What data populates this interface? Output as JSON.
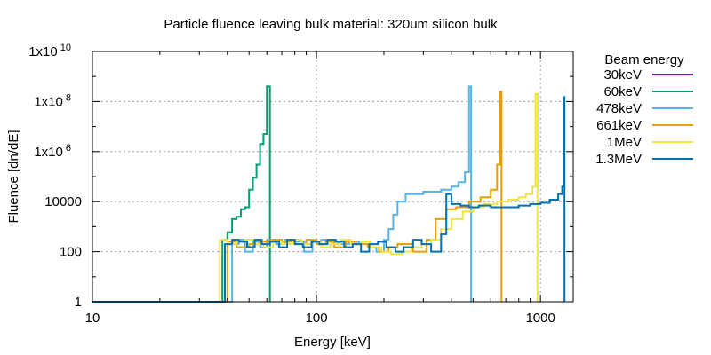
{
  "chart_data": {
    "type": "line",
    "title": "Particle fluence leaving bulk material: 320um silicon bulk",
    "xlabel": "Energy [keV]",
    "ylabel": "Fluence [dn/dE]",
    "xscale": "log",
    "yscale": "log",
    "xlim": [
      10,
      1400
    ],
    "ylim": [
      1,
      10000000000
    ],
    "x_ticks": [
      {
        "value": 10,
        "label": "10"
      },
      {
        "value": 100,
        "label": "100"
      },
      {
        "value": 1000,
        "label": "1000"
      }
    ],
    "y_ticks": [
      {
        "value": 1,
        "label": "1"
      },
      {
        "value": 100,
        "label": "100"
      },
      {
        "value": 10000,
        "label": "10000"
      },
      {
        "value": 1000000,
        "label": "1x10",
        "exp": "6"
      },
      {
        "value": 100000000,
        "label": "1x10",
        "exp": "8"
      },
      {
        "value": 10000000000,
        "label": "1x10",
        "exp": "10"
      }
    ],
    "grid": true,
    "legend": {
      "title": "Beam energy",
      "placement": "outside-right"
    },
    "series": [
      {
        "name": "30keV",
        "color": "#9400d3",
        "x": [],
        "y": []
      },
      {
        "name": "60keV",
        "color": "#009e73",
        "x": [
          10,
          35,
          38,
          40,
          42,
          44,
          46,
          48,
          50,
          52,
          54,
          56,
          58,
          60,
          62
        ],
        "y": [
          1,
          1,
          300,
          600,
          2000,
          2500,
          5000,
          6000,
          30000,
          90000,
          300000,
          2000000,
          5000000,
          400000000,
          1
        ]
      },
      {
        "name": "478keV",
        "color": "#56b4e9",
        "x": [
          10,
          40,
          42,
          45,
          48,
          52,
          56,
          60,
          66,
          72,
          80,
          88,
          96,
          105,
          115,
          125,
          140,
          155,
          170,
          185,
          200,
          210,
          220,
          230,
          250,
          270,
          300,
          330,
          360,
          400,
          430,
          460,
          480,
          490
        ],
        "y": [
          1,
          1,
          200,
          300,
          100,
          250,
          150,
          300,
          200,
          300,
          250,
          100,
          250,
          300,
          250,
          200,
          250,
          200,
          150,
          100,
          300,
          800,
          3000,
          10000,
          20000,
          20000,
          25000,
          25000,
          30000,
          40000,
          60000,
          150000,
          400000000,
          1
        ]
      },
      {
        "name": "661keV",
        "color": "#e69f00",
        "x": [
          10,
          36,
          40,
          44,
          50,
          56,
          62,
          70,
          80,
          90,
          100,
          110,
          120,
          135,
          150,
          170,
          190,
          210,
          230,
          250,
          270,
          290,
          310,
          340,
          380,
          420,
          480,
          540,
          600,
          640,
          660,
          670
        ],
        "y": [
          1,
          1,
          250,
          150,
          200,
          250,
          300,
          250,
          200,
          300,
          200,
          250,
          150,
          250,
          200,
          150,
          100,
          150,
          200,
          200,
          100,
          100,
          300,
          2000,
          5000,
          6000,
          10000,
          15000,
          30000,
          300000,
          250000000,
          1
        ]
      },
      {
        "name": "1MeV",
        "color": "#f0e442",
        "x": [
          10,
          34,
          37,
          40,
          44,
          48,
          53,
          58,
          64,
          70,
          78,
          86,
          95,
          105,
          115,
          128,
          142,
          158,
          175,
          195,
          215,
          240,
          265,
          295,
          325,
          360,
          400,
          450,
          500,
          560,
          640,
          720,
          800,
          860,
          920,
          950,
          970
        ],
        "y": [
          1,
          1,
          300,
          200,
          250,
          300,
          200,
          150,
          250,
          200,
          300,
          200,
          250,
          150,
          200,
          300,
          200,
          250,
          150,
          100,
          80,
          100,
          150,
          200,
          300,
          800,
          2000,
          4000,
          6000,
          8000,
          10000,
          12000,
          15000,
          20000,
          40000,
          200000000,
          1
        ]
      },
      {
        "name": "1.3MeV",
        "color": "#0072b2",
        "x": [
          10,
          36,
          39,
          42,
          45,
          49,
          53,
          57,
          62,
          68,
          74,
          80,
          87,
          95,
          103,
          112,
          122,
          133,
          145,
          158,
          172,
          188,
          205,
          225,
          245,
          270,
          295,
          325,
          360,
          380,
          400,
          440,
          480,
          530,
          600,
          700,
          800,
          900,
          1000,
          1100,
          1200,
          1250,
          1270,
          1280
        ],
        "y": [
          1,
          1,
          200,
          300,
          250,
          150,
          300,
          200,
          250,
          150,
          300,
          200,
          150,
          250,
          200,
          300,
          250,
          150,
          200,
          100,
          200,
          250,
          150,
          100,
          150,
          300,
          200,
          100,
          500,
          20000,
          8000,
          7000,
          6000,
          7000,
          6000,
          6000,
          7000,
          8000,
          9000,
          12000,
          20000,
          40000,
          150000000,
          1
        ]
      }
    ]
  }
}
